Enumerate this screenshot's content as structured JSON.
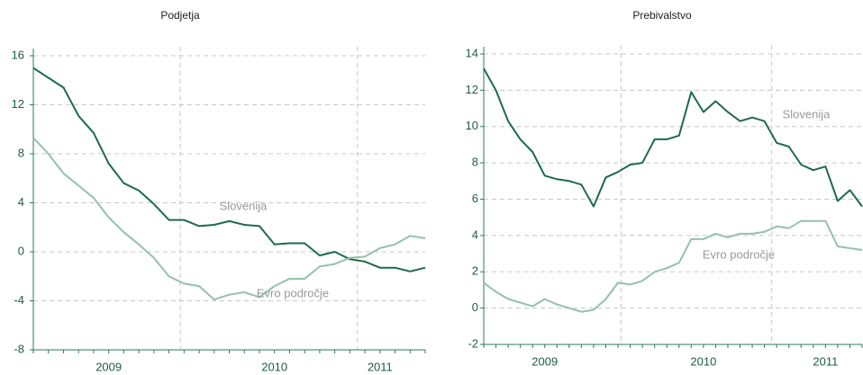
{
  "chart_data": [
    {
      "type": "line",
      "title": "Podjetja",
      "categories": [
        null,
        null,
        null,
        null,
        null,
        "2009",
        null,
        null,
        null,
        null,
        null,
        null,
        null,
        null,
        null,
        null,
        "2010",
        null,
        null,
        null,
        null,
        null,
        null,
        "2011",
        null,
        null,
        null
      ],
      "series": [
        {
          "name": "Slovenija",
          "color": "#1d6b4c",
          "values": [
            15,
            14.2,
            13.4,
            11.1,
            9.7,
            7.2,
            5.6,
            5.0,
            3.9,
            2.6,
            2.6,
            2.1,
            2.2,
            2.5,
            2.2,
            2.1,
            0.6,
            0.7,
            0.7,
            -0.3,
            0,
            -0.6,
            -0.8,
            -1.3,
            -1.3,
            -1.6,
            -1.3
          ]
        },
        {
          "name": "Evro področje",
          "color": "#93c1ab",
          "values": [
            9.3,
            8,
            6.4,
            5.4,
            4.4,
            2.8,
            1.6,
            0.6,
            -0.5,
            -2,
            -2.6,
            -2.8,
            -3.9,
            -3.5,
            -3.3,
            -3.7,
            -2.8,
            -2.2,
            -2.2,
            -1.2,
            -1,
            -0.5,
            -0.4,
            0.3,
            0.6,
            1.3,
            1.1
          ]
        }
      ],
      "ylim": [
        -8,
        16
      ],
      "yticks": [
        -8,
        -4,
        0,
        4,
        8,
        12,
        16
      ],
      "grid": true
    },
    {
      "type": "line",
      "title": "Prebivalstvo",
      "categories": [
        null,
        null,
        null,
        null,
        null,
        "2009",
        null,
        null,
        null,
        null,
        null,
        null,
        null,
        null,
        null,
        null,
        null,
        null,
        "2010",
        null,
        null,
        null,
        null,
        null,
        null,
        null,
        null,
        null,
        "2011",
        null,
        null,
        null
      ],
      "series": [
        {
          "name": "Slovenija",
          "color": "#1d6b4c",
          "values": [
            13.2,
            12.0,
            10.3,
            9.3,
            8.6,
            7.3,
            7.1,
            7.0,
            6.8,
            5.6,
            7.2,
            7.5,
            7.9,
            8.0,
            9.3,
            9.3,
            9.5,
            11.9,
            10.8,
            11.4,
            10.8,
            10.3,
            10.5,
            10.3,
            9.1,
            8.9,
            7.9,
            7.6,
            7.8,
            5.9,
            6.5,
            5.6
          ]
        },
        {
          "name": "Evro področje",
          "color": "#93c1ab",
          "values": [
            1.4,
            0.9,
            0.5,
            0.3,
            0.1,
            0.5,
            0.2,
            0,
            -0.2,
            -0.1,
            0.5,
            1.4,
            1.3,
            1.5,
            2.0,
            2.2,
            2.5,
            3.8,
            3.8,
            4.1,
            3.9,
            4.1,
            4.1,
            4.2,
            4.5,
            4.4,
            4.8,
            4.8,
            4.8,
            3.4,
            3.3,
            3.2
          ]
        }
      ],
      "ylim": [
        -2,
        14
      ],
      "yticks": [
        -2,
        0,
        2,
        4,
        6,
        8,
        10,
        12,
        14
      ],
      "grid": true
    }
  ]
}
